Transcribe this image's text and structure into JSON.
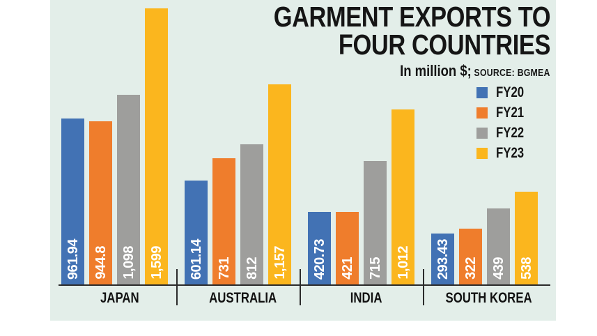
{
  "title": {
    "line1": "GARMENT EXPORTS TO",
    "line2": "FOUR COUNTRIES"
  },
  "subtitle": {
    "unit": "In million $;",
    "source": "SOURCE: BGMEA"
  },
  "colors": {
    "background": "#e3eee9",
    "fy20_blue": "#4272b4",
    "fy21_orange": "#ef7d2c",
    "fy22_gray": "#9e9e9c",
    "fy23_yellow": "#fbb61e",
    "axis": "#2b2b2b",
    "text": "#151515",
    "value_text": "#ffffff"
  },
  "chart_data": {
    "type": "bar",
    "title": "GARMENT EXPORTS TO FOUR COUNTRIES",
    "unit": "In million $",
    "source": "BGMEA",
    "categories": [
      "JAPAN",
      "AUSTRALIA",
      "INDIA",
      "SOUTH KOREA"
    ],
    "series": [
      {
        "name": "FY20",
        "color": "#4272b4",
        "values": [
          961.94,
          601.14,
          420.73,
          293.43
        ],
        "display_labels": [
          "961.94",
          "601.14",
          "420.73",
          "293.43"
        ]
      },
      {
        "name": "FY21",
        "color": "#ef7d2c",
        "values": [
          944.8,
          731,
          421,
          322
        ],
        "display_labels": [
          "944.8",
          "731",
          "421",
          "322"
        ]
      },
      {
        "name": "FY22",
        "color": "#9e9e9c",
        "values": [
          1098,
          812,
          715,
          439
        ],
        "display_labels": [
          "1,098",
          "812",
          "715",
          "439"
        ]
      },
      {
        "name": "FY23",
        "color": "#fbb61e",
        "values": [
          1599,
          1157,
          1012,
          538
        ],
        "display_labels": [
          "1,599",
          "1,157",
          "1,012",
          "538"
        ]
      }
    ],
    "ylim": [
      0,
      1599
    ],
    "grid": false,
    "legend_position": "right",
    "value_label_style": "white-rotated-inside-bar-bottom"
  }
}
